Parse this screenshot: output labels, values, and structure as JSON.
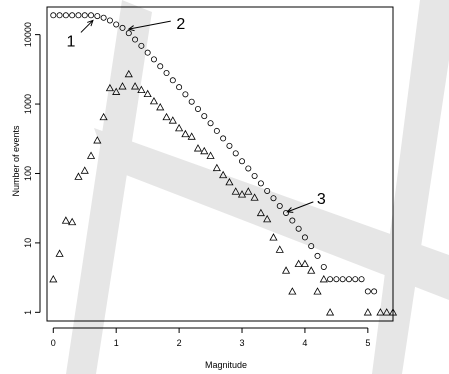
{
  "chart_data": {
    "type": "scatter",
    "xlabel": "Magnitude",
    "ylabel": "Number of events",
    "xlim": [
      -0.1,
      5.4
    ],
    "ylim": [
      0.75,
      25000
    ],
    "y_scale": "log",
    "x_ticks": [
      "0",
      "1",
      "2",
      "3",
      "4",
      "5"
    ],
    "y_ticks": [
      "1",
      "10",
      "100",
      "1000",
      "10000"
    ],
    "grid": false,
    "watermark_color": "#e6e6e6",
    "series": [
      {
        "marker": "circle",
        "x": [
          0,
          0.1,
          0.2,
          0.3,
          0.4,
          0.5,
          0.6,
          0.7,
          0.8,
          0.9,
          1.0,
          1.1,
          1.2,
          1.3,
          1.4,
          1.5,
          1.6,
          1.7,
          1.8,
          1.9,
          2.0,
          2.1,
          2.2,
          2.3,
          2.4,
          2.5,
          2.6,
          2.7,
          2.8,
          2.9,
          3.0,
          3.1,
          3.2,
          3.3,
          3.4,
          3.5,
          3.6,
          3.7,
          3.8,
          3.9,
          4.0,
          4.1,
          4.2,
          4.3,
          4.4,
          4.5,
          4.6,
          4.7,
          4.8,
          4.9,
          5.0,
          5.1
        ],
        "y": [
          19000,
          19000,
          19000,
          19000,
          19000,
          19000,
          19000,
          18500,
          17500,
          16000,
          14000,
          12500,
          10500,
          8500,
          6900,
          5500,
          4400,
          3500,
          2800,
          2200,
          1750,
          1380,
          1080,
          850,
          670,
          530,
          410,
          320,
          250,
          195,
          150,
          118,
          92,
          72,
          56,
          44,
          34,
          27,
          21,
          16,
          12,
          9,
          6.5,
          4.5,
          3,
          3,
          3,
          3,
          3,
          3,
          2,
          2
        ]
      },
      {
        "marker": "triangle",
        "x": [
          0.0,
          0.1,
          0.2,
          0.3,
          0.4,
          0.5,
          0.6,
          0.7,
          0.8,
          0.9,
          1.0,
          1.1,
          1.2,
          1.3,
          1.4,
          1.5,
          1.6,
          1.7,
          1.8,
          1.9,
          2.0,
          2.1,
          2.2,
          2.3,
          2.4,
          2.5,
          2.6,
          2.7,
          2.8,
          2.9,
          3.0,
          3.1,
          3.2,
          3.3,
          3.4,
          3.5,
          3.6,
          3.7,
          3.8,
          3.9,
          4.0,
          4.1,
          4.2,
          4.3,
          4.4,
          5.0,
          5.2,
          5.3,
          5.4
        ],
        "y": [
          3,
          7,
          21,
          20,
          90,
          110,
          180,
          300,
          650,
          1700,
          1500,
          1800,
          2700,
          1800,
          1600,
          1400,
          1100,
          900,
          650,
          580,
          450,
          370,
          340,
          230,
          210,
          180,
          120,
          95,
          75,
          55,
          50,
          55,
          45,
          27,
          22,
          12,
          8,
          4,
          2,
          5,
          5,
          4,
          2,
          3,
          1,
          1,
          1,
          1,
          1
        ]
      }
    ],
    "annotations": [
      {
        "label": "1",
        "x": 0.63,
        "y": 16000
      },
      {
        "label": "2",
        "x": 1.2,
        "y": 12000
      },
      {
        "label": "3",
        "x": 3.72,
        "y": 28
      }
    ]
  }
}
